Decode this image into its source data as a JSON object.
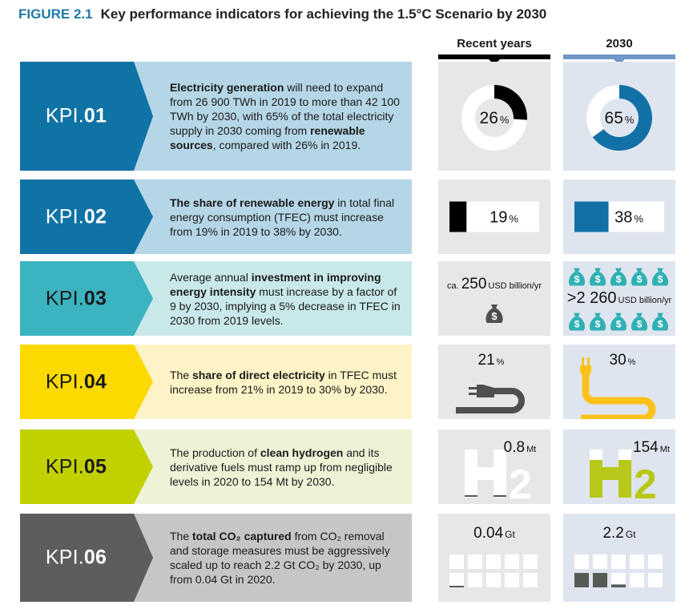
{
  "figure": {
    "number": "FIGURE 2.1",
    "title": "Key performance indicators for achieving the 1.5°C Scenario by 2030"
  },
  "columns": {
    "recent": "Recent years",
    "future": "2030"
  },
  "colors": {
    "title_accent": "#1f79a7",
    "recent_header_bar": "#000000",
    "future_header_bar": "#6f98c6",
    "recent_panel_bg": "#e7e7e7",
    "future_panel_bg": "#dfe5ef"
  },
  "kpis": [
    {
      "prefix": "KPI.",
      "number": "01",
      "chevron_color": "#0f73a6",
      "band_color": "#b5d6e6",
      "label_color": "#ffffff",
      "text": [
        {
          "b": true,
          "t": "Electricity generation"
        },
        {
          "b": false,
          "t": " will need to expand from 26 900 TWh in 2019 to more than 42 100 TWh by 2030, with 65% of the total electricity supply in 2030 coming from "
        },
        {
          "b": true,
          "t": "renewable sources"
        },
        {
          "b": false,
          "t": ", compared with 26% in 2019."
        }
      ],
      "recent": {
        "value": "26",
        "unit": "%",
        "share": 0.26
      },
      "future": {
        "value": "65",
        "unit": "%",
        "share": 0.65
      }
    },
    {
      "prefix": "KPI.",
      "number": "02",
      "chevron_color": "#0f73a6",
      "band_color": "#b5d6e6",
      "label_color": "#ffffff",
      "text": [
        {
          "b": true,
          "t": "The share of renewable energy"
        },
        {
          "b": false,
          "t": " in total final energy consumption (TFEC) must increase from 19% in 2019 to 38% by 2030."
        }
      ],
      "recent": {
        "value": "19",
        "unit": "%",
        "share": 0.19
      },
      "future": {
        "value": "38",
        "unit": "%",
        "share": 0.38
      }
    },
    {
      "prefix": "KPI.",
      "number": "03",
      "chevron_color": "#3bb3c0",
      "band_color": "#c9e8ea",
      "label_color": "#1a1a1a",
      "text": [
        {
          "b": false,
          "t": "Average annual "
        },
        {
          "b": true,
          "t": "investment in improving energy intensity"
        },
        {
          "b": false,
          "t": " must increase by a factor of 9 by 2030, implying a 5% decrease in TFEC in 2030 from 2019 levels."
        }
      ],
      "recent": {
        "prefix": "ca.",
        "value": "250",
        "unit": "USD billion/yr",
        "bags": 1
      },
      "future": {
        "prefix": ">",
        "value": "2 260",
        "unit": "USD billion/yr",
        "bags": 10
      }
    },
    {
      "prefix": "KPI.",
      "number": "04",
      "chevron_color": "#fcd900",
      "band_color": "#fdf3c6",
      "label_color": "#1a1a1a",
      "text": [
        {
          "b": false,
          "t": "The "
        },
        {
          "b": true,
          "t": "share of direct electricity"
        },
        {
          "b": false,
          "t": " in TFEC must increase from 21% in 2019 to 30% by 2030."
        }
      ],
      "recent": {
        "value": "21",
        "unit": "%",
        "share": 0.21
      },
      "future": {
        "value": "30",
        "unit": "%",
        "share": 0.3
      }
    },
    {
      "prefix": "KPI.",
      "number": "05",
      "chevron_color": "#c1d100",
      "band_color": "#eef2d6",
      "label_color": "#1a1a1a",
      "text": [
        {
          "b": false,
          "t": "The production of "
        },
        {
          "b": true,
          "t": "clean hydrogen"
        },
        {
          "b": false,
          "t": " and its derivative fuels must ramp up from negligible levels in 2020 to 154 Mt by 2030."
        }
      ],
      "recent": {
        "value": "0.8",
        "unit": "Mt",
        "fill": 0.005
      },
      "future": {
        "value": "154",
        "unit": "Mt",
        "fill": 0.75
      }
    },
    {
      "prefix": "KPI.",
      "number": "06",
      "chevron_color": "#5b5e5a",
      "band_color": "#c6c6c6",
      "label_color": "#ffffff",
      "text": [
        {
          "b": false,
          "t": "The "
        },
        {
          "b": true,
          "t": "total CO₂ captured"
        },
        {
          "b": false,
          "t": " from CO₂ removal  and storage measures must be aggressively scaled up to reach 2.2 Gt CO₂ by 2030, up from 0.04 Gt in 2020."
        }
      ],
      "recent": {
        "value": "0.04",
        "unit": "Gt",
        "blocks": 0.04
      },
      "future": {
        "value": "2.2",
        "unit": "Gt",
        "blocks": 2.2
      }
    }
  ]
}
